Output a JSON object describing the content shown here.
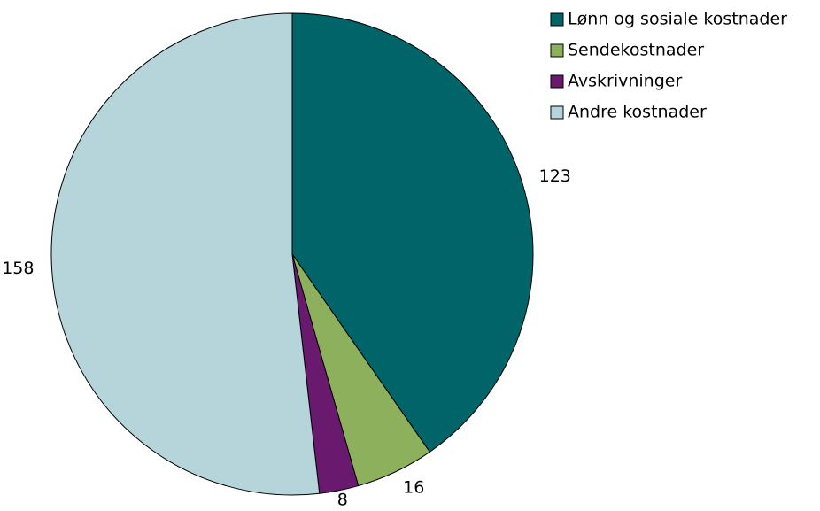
{
  "chart_data": {
    "type": "pie",
    "categories": [
      "Lønn og sosiale kostnader",
      "Sendekostnader",
      "Avskrivninger",
      "Andre kostnader"
    ],
    "values": [
      123,
      16,
      8,
      158
    ],
    "colors": [
      "#006468",
      "#8db05c",
      "#6a1a6e",
      "#b5d5da"
    ],
    "legend": "top-right"
  }
}
